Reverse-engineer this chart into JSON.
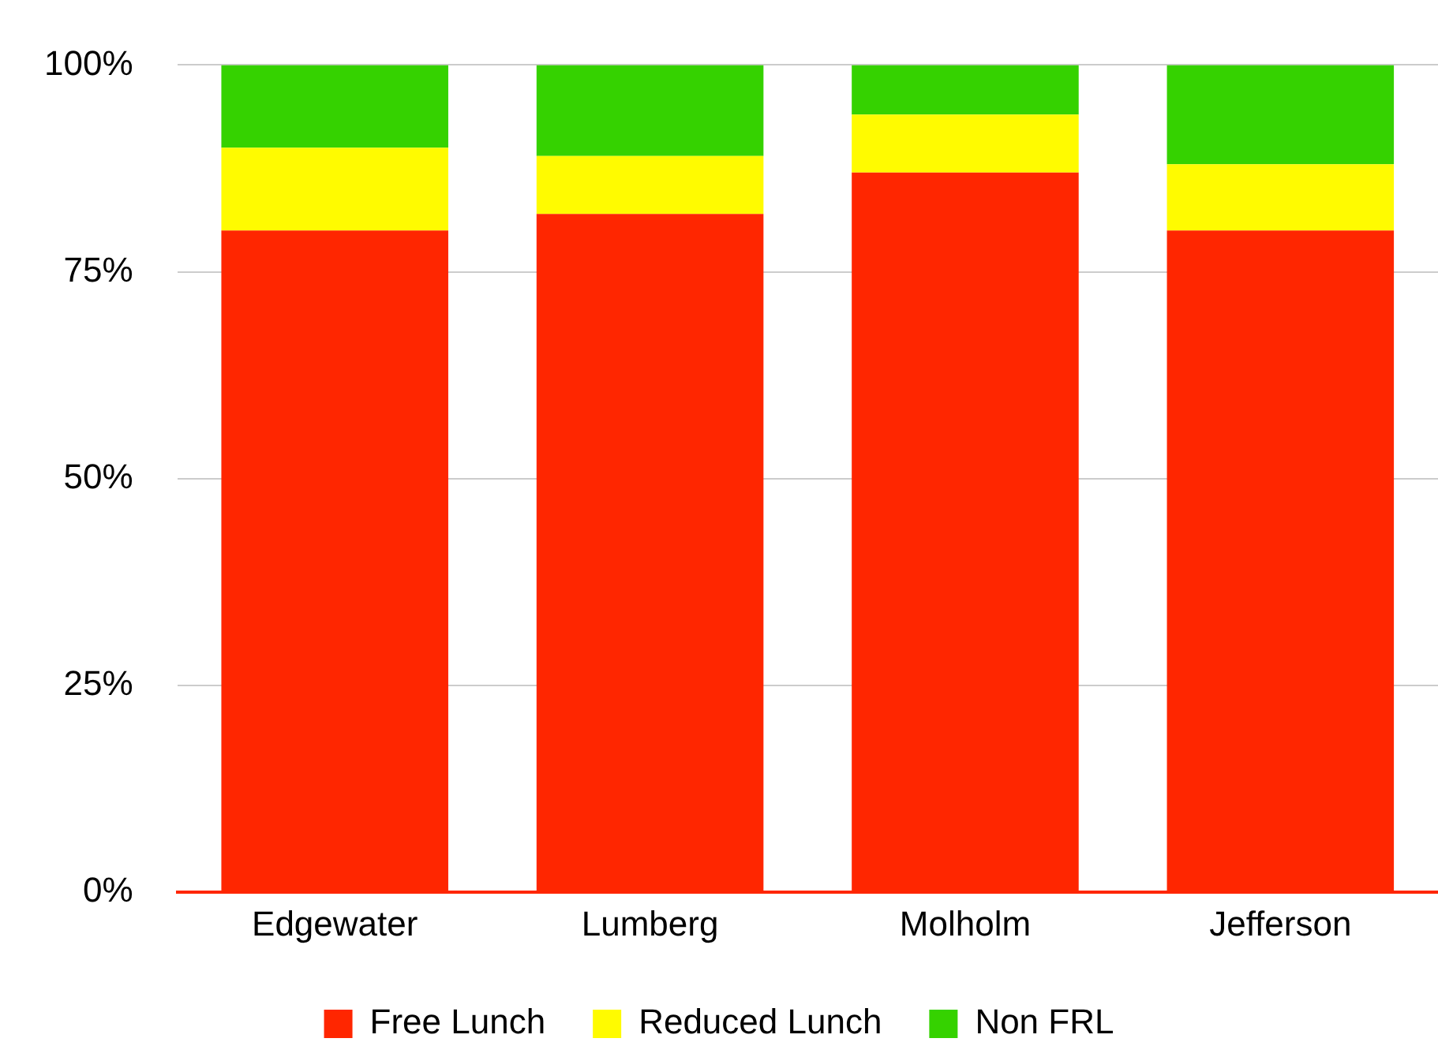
{
  "chart_data": {
    "type": "bar",
    "stacked": true,
    "categories": [
      "Edgewater",
      "Lumberg",
      "Molholm",
      "Jefferson"
    ],
    "series": [
      {
        "name": "Free Lunch",
        "color": "#ff2600",
        "values": [
          80,
          82,
          87,
          80
        ]
      },
      {
        "name": "Reduced Lunch",
        "color": "#fffb00",
        "values": [
          10,
          7,
          7,
          8
        ]
      },
      {
        "name": "Non FRL",
        "color": "#35d200",
        "values": [
          10,
          11,
          6,
          12
        ]
      }
    ],
    "ylim": [
      0,
      100
    ],
    "yticks": [
      {
        "value": 0,
        "label": "0%"
      },
      {
        "value": 25,
        "label": "25%"
      },
      {
        "value": 50,
        "label": "50%"
      },
      {
        "value": 75,
        "label": "75%"
      },
      {
        "value": 100,
        "label": "100%"
      }
    ],
    "grid": "y",
    "legend": "bottom"
  }
}
